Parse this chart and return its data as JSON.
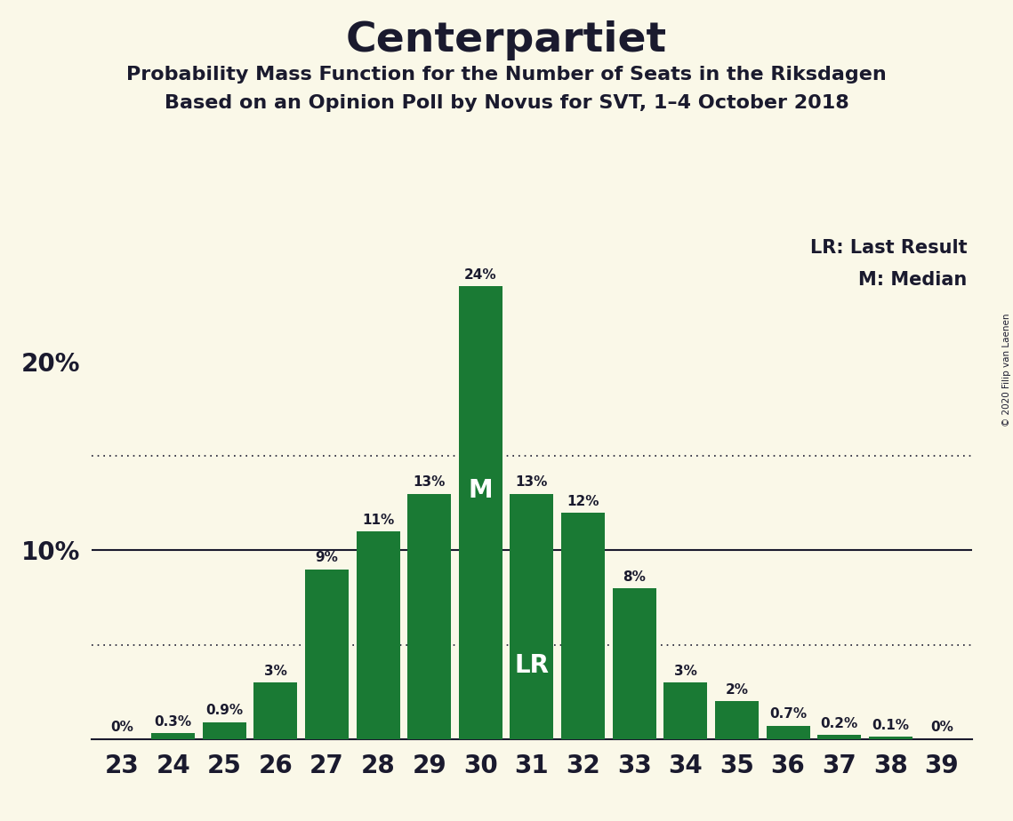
{
  "title": "Centerpartiet",
  "subtitle1": "Probability Mass Function for the Number of Seats in the Riksdagen",
  "subtitle2": "Based on an Opinion Poll by Novus for SVT, 1–4 October 2018",
  "copyright": "© 2020 Filip van Laenen",
  "legend_lr": "LR: Last Result",
  "legend_m": "M: Median",
  "seats": [
    23,
    24,
    25,
    26,
    27,
    28,
    29,
    30,
    31,
    32,
    33,
    34,
    35,
    36,
    37,
    38,
    39
  ],
  "probabilities": [
    0.0,
    0.3,
    0.9,
    3.0,
    9.0,
    11.0,
    13.0,
    24.0,
    13.0,
    12.0,
    8.0,
    3.0,
    2.0,
    0.7,
    0.2,
    0.1,
    0.0
  ],
  "labels": [
    "0%",
    "0.3%",
    "0.9%",
    "3%",
    "9%",
    "11%",
    "13%",
    "24%",
    "13%",
    "12%",
    "8%",
    "3%",
    "2%",
    "0.7%",
    "0.2%",
    "0.1%",
    "0%"
  ],
  "bar_color": "#1a7a34",
  "background_color": "#faf8e8",
  "text_color": "#1a1a2e",
  "median_seat": 30,
  "lr_seat": 31,
  "dotted_line_1": 15.0,
  "dotted_line_2": 5.0,
  "solid_line": 10.0,
  "ylim": [
    0,
    27
  ],
  "xlim": [
    22.4,
    39.6
  ]
}
